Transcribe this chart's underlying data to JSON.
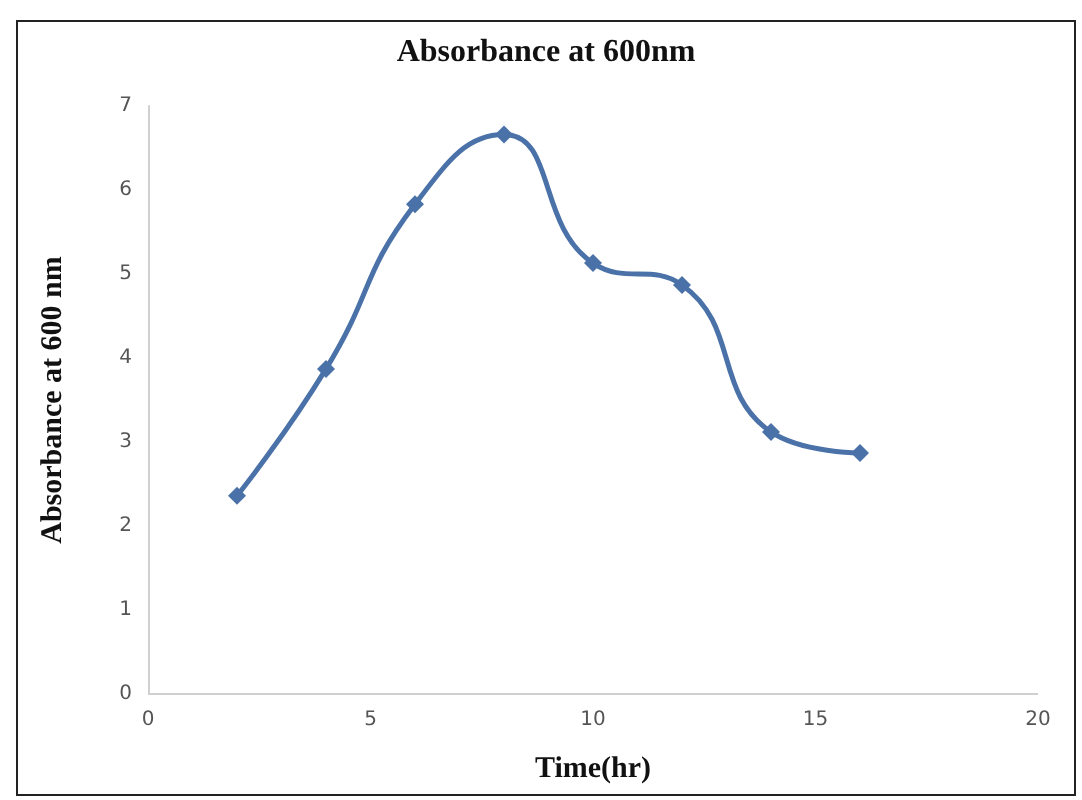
{
  "chart_data": {
    "type": "line",
    "title": "Absorbance at 600nm",
    "xlabel": "Time(hr)",
    "ylabel": "Absorbance at 600 nm",
    "x": [
      2,
      4,
      6,
      8,
      10,
      12,
      14,
      16
    ],
    "series": [
      {
        "color": "#4a72a8",
        "values": [
          2.36,
          3.87,
          5.83,
          6.66,
          5.13,
          4.87,
          3.12,
          2.87
        ]
      }
    ],
    "xlim": [
      0,
      20
    ],
    "xticks": [
      0,
      5,
      10,
      15,
      20
    ],
    "ylim": [
      0,
      7
    ],
    "yticks": [
      0,
      1,
      2,
      3,
      4,
      5,
      6,
      7
    ],
    "grid": false,
    "marker": "diamond",
    "line_style": "solid"
  }
}
